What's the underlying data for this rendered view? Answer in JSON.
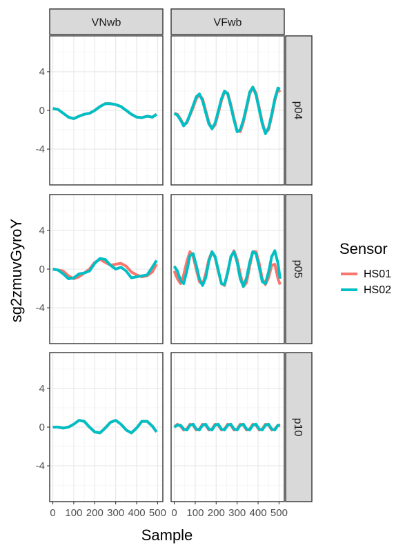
{
  "chart_data": {
    "type": "line",
    "xlabel": "Sample",
    "ylabel": "sg2zmuvGyroY",
    "xlim": [
      -15,
      525
    ],
    "ylim": [
      -7.7,
      7.7
    ],
    "x_ticks": [
      0,
      100,
      200,
      300,
      400,
      500
    ],
    "x_tick_labels": [
      "0",
      "100",
      "200",
      "300",
      "400",
      "500"
    ],
    "y_ticks": [
      -4,
      0,
      4
    ],
    "y_tick_labels": [
      "-4",
      "0",
      "4"
    ],
    "grid": true,
    "legend": {
      "title": "Sensor",
      "position": "right",
      "entries": [
        "HS01",
        "HS02"
      ]
    },
    "colors": {
      "HS01": "#F8766D",
      "HS02": "#00BFC4"
    },
    "facet_columns": [
      "VNwb",
      "VFwb"
    ],
    "facet_rows": [
      "p04",
      "p05",
      "p10"
    ],
    "panels": [
      {
        "row": "p04",
        "col": "VNwb",
        "series": [
          {
            "name": "HS01",
            "x": [
              0,
              25,
              50,
              75,
              100,
              125,
              150,
              175,
              200,
              225,
              250,
              275,
              300,
              325,
              350,
              375,
              400,
              425,
              450,
              475,
              495
            ],
            "y": [
              0.2,
              0.1,
              -0.3,
              -0.7,
              -0.85,
              -0.6,
              -0.4,
              -0.3,
              0.0,
              0.4,
              0.7,
              0.7,
              0.6,
              0.4,
              0.0,
              -0.4,
              -0.7,
              -0.75,
              -0.6,
              -0.7,
              -0.4
            ]
          },
          {
            "name": "HS02",
            "x": [
              0,
              25,
              50,
              75,
              100,
              125,
              150,
              175,
              200,
              225,
              250,
              275,
              300,
              325,
              350,
              375,
              400,
              425,
              450,
              475,
              495
            ],
            "y": [
              0.2,
              0.1,
              -0.3,
              -0.7,
              -0.85,
              -0.6,
              -0.4,
              -0.3,
              0.0,
              0.4,
              0.7,
              0.7,
              0.6,
              0.4,
              0.0,
              -0.4,
              -0.7,
              -0.75,
              -0.6,
              -0.7,
              -0.4
            ]
          }
        ]
      },
      {
        "row": "p04",
        "col": "VFwb",
        "series": [
          {
            "name": "HS01",
            "x": [
              0,
              15,
              30,
              45,
              60,
              75,
              90,
              105,
              120,
              135,
              150,
              165,
              180,
              195,
              210,
              225,
              240,
              255,
              270,
              285,
              300,
              315,
              330,
              345,
              360,
              375,
              390,
              405,
              420,
              435,
              450,
              465,
              480,
              495,
              505
            ],
            "y": [
              -0.3,
              -0.4,
              -0.9,
              -1.5,
              -1.3,
              -0.5,
              0.3,
              1.2,
              1.6,
              1.2,
              0.0,
              -1.2,
              -1.9,
              -1.5,
              -0.3,
              1.0,
              1.9,
              1.8,
              0.6,
              -0.8,
              -2.1,
              -2.2,
              -1.2,
              0.2,
              1.7,
              2.4,
              1.8,
              0.3,
              -1.2,
              -2.3,
              -2.0,
              -0.6,
              1.0,
              2.2,
              1.9
            ]
          },
          {
            "name": "HS02",
            "x": [
              0,
              15,
              30,
              45,
              60,
              75,
              90,
              105,
              120,
              135,
              150,
              165,
              180,
              195,
              210,
              225,
              240,
              255,
              270,
              285,
              300,
              315,
              330,
              345,
              360,
              375,
              390,
              405,
              420,
              435,
              450,
              465,
              480,
              495,
              505
            ],
            "y": [
              -0.3,
              -0.5,
              -1.0,
              -1.6,
              -1.2,
              -0.4,
              0.5,
              1.4,
              1.7,
              1.0,
              -0.2,
              -1.4,
              -1.9,
              -1.3,
              -0.1,
              1.2,
              2.0,
              1.7,
              0.4,
              -1.0,
              -2.2,
              -2.0,
              -1.0,
              0.4,
              1.9,
              2.4,
              1.6,
              0.1,
              -1.4,
              -2.4,
              -1.8,
              -0.4,
              1.2,
              2.3,
              2.2
            ]
          }
        ]
      },
      {
        "row": "p05",
        "col": "VNwb",
        "series": [
          {
            "name": "HS01",
            "x": [
              0,
              25,
              50,
              75,
              100,
              125,
              150,
              175,
              200,
              225,
              250,
              275,
              300,
              325,
              350,
              375,
              400,
              425,
              450,
              475,
              495
            ],
            "y": [
              0.0,
              -0.1,
              -0.2,
              -0.7,
              -1.0,
              -0.8,
              -0.4,
              0.0,
              0.7,
              1.0,
              0.7,
              0.4,
              0.5,
              0.6,
              0.3,
              -0.3,
              -0.6,
              -0.8,
              -0.7,
              -0.3,
              0.5
            ]
          },
          {
            "name": "HS02",
            "x": [
              0,
              25,
              50,
              75,
              100,
              125,
              150,
              175,
              200,
              225,
              250,
              275,
              300,
              325,
              350,
              375,
              400,
              425,
              450,
              475,
              495
            ],
            "y": [
              0.0,
              -0.1,
              -0.5,
              -1.0,
              -0.9,
              -0.5,
              -0.4,
              -0.2,
              0.6,
              1.1,
              1.0,
              0.4,
              0.0,
              0.2,
              -0.2,
              -0.9,
              -0.8,
              -0.7,
              -0.6,
              0.2,
              0.9
            ]
          }
        ]
      },
      {
        "row": "p05",
        "col": "VFwb",
        "series": [
          {
            "name": "HS01",
            "x": [
              0,
              15,
              30,
              45,
              60,
              75,
              90,
              105,
              120,
              135,
              150,
              165,
              180,
              195,
              210,
              225,
              240,
              255,
              270,
              285,
              300,
              315,
              330,
              345,
              360,
              375,
              390,
              405,
              420,
              435,
              450,
              465,
              480,
              495,
              505
            ],
            "y": [
              -0.2,
              -1.0,
              -1.5,
              -0.6,
              0.8,
              1.8,
              1.3,
              0.0,
              -1.3,
              -1.6,
              -0.5,
              1.0,
              1.8,
              1.2,
              -0.2,
              -1.5,
              -1.7,
              -0.4,
              1.2,
              1.9,
              1.0,
              -0.5,
              -1.8,
              -1.4,
              0.3,
              1.8,
              1.8,
              0.6,
              -1.0,
              -1.6,
              -0.9,
              0.4,
              0.5,
              -1.0,
              -1.6
            ]
          },
          {
            "name": "HS02",
            "x": [
              0,
              15,
              30,
              45,
              60,
              75,
              90,
              105,
              120,
              135,
              150,
              165,
              180,
              195,
              210,
              225,
              240,
              255,
              270,
              285,
              300,
              315,
              330,
              345,
              360,
              375,
              390,
              405,
              420,
              435,
              450,
              465,
              480,
              495,
              505
            ],
            "y": [
              0.3,
              -0.2,
              -1.2,
              -1.5,
              -0.2,
              1.4,
              1.6,
              0.4,
              -1.0,
              -1.7,
              -0.9,
              0.8,
              1.8,
              1.3,
              -0.1,
              -1.5,
              -1.6,
              -0.3,
              1.3,
              1.8,
              0.7,
              -1.0,
              -1.8,
              -0.9,
              0.7,
              1.8,
              1.6,
              0.2,
              -1.3,
              -1.5,
              -0.3,
              1.3,
              1.9,
              0.6,
              -1.0
            ]
          }
        ]
      },
      {
        "row": "p10",
        "col": "VNwb",
        "series": [
          {
            "name": "HS01",
            "x": [
              0,
              25,
              50,
              75,
              100,
              125,
              150,
              175,
              200,
              225,
              250,
              275,
              300,
              325,
              350,
              375,
              400,
              425,
              450,
              475,
              495
            ],
            "y": [
              0.0,
              0.0,
              -0.1,
              0.0,
              0.3,
              0.7,
              0.6,
              0.0,
              -0.5,
              -0.6,
              -0.1,
              0.5,
              0.7,
              0.3,
              -0.3,
              -0.6,
              -0.1,
              0.6,
              0.6,
              0.1,
              -0.5
            ]
          },
          {
            "name": "HS02",
            "x": [
              0,
              25,
              50,
              75,
              100,
              125,
              150,
              175,
              200,
              225,
              250,
              275,
              300,
              325,
              350,
              375,
              400,
              425,
              450,
              475,
              495
            ],
            "y": [
              0.0,
              0.0,
              -0.1,
              0.0,
              0.3,
              0.7,
              0.6,
              0.0,
              -0.5,
              -0.6,
              -0.1,
              0.5,
              0.7,
              0.3,
              -0.3,
              -0.6,
              -0.1,
              0.6,
              0.6,
              0.1,
              -0.5
            ]
          }
        ]
      },
      {
        "row": "p10",
        "col": "VFwb",
        "series": [
          {
            "name": "HS01",
            "x": [
              0,
              15,
              30,
              45,
              60,
              75,
              90,
              105,
              120,
              135,
              150,
              165,
              180,
              195,
              210,
              225,
              240,
              255,
              270,
              285,
              300,
              315,
              330,
              345,
              360,
              375,
              390,
              405,
              420,
              435,
              450,
              465,
              480,
              495,
              505
            ],
            "y": [
              0.0,
              0.3,
              0.1,
              -0.3,
              -0.2,
              0.3,
              0.2,
              -0.3,
              -0.2,
              0.3,
              0.2,
              -0.3,
              -0.2,
              0.3,
              0.2,
              -0.3,
              -0.2,
              0.3,
              0.2,
              -0.3,
              -0.2,
              0.3,
              0.2,
              -0.3,
              -0.2,
              0.3,
              0.2,
              -0.3,
              -0.2,
              0.3,
              0.2,
              -0.3,
              -0.2,
              0.2,
              0.1
            ]
          },
          {
            "name": "HS02",
            "x": [
              0,
              15,
              30,
              45,
              60,
              75,
              90,
              105,
              120,
              135,
              150,
              165,
              180,
              195,
              210,
              225,
              240,
              255,
              270,
              285,
              300,
              315,
              330,
              345,
              360,
              375,
              390,
              405,
              420,
              435,
              450,
              465,
              480,
              495,
              505
            ],
            "y": [
              0.0,
              0.2,
              0.2,
              -0.2,
              -0.3,
              0.2,
              0.3,
              -0.2,
              -0.3,
              0.2,
              0.3,
              -0.2,
              -0.3,
              0.2,
              0.3,
              -0.2,
              -0.3,
              0.2,
              0.3,
              -0.2,
              -0.3,
              0.2,
              0.3,
              -0.2,
              -0.3,
              0.2,
              0.3,
              -0.2,
              -0.3,
              0.2,
              0.3,
              -0.2,
              -0.3,
              0.2,
              0.2
            ]
          }
        ]
      }
    ]
  }
}
